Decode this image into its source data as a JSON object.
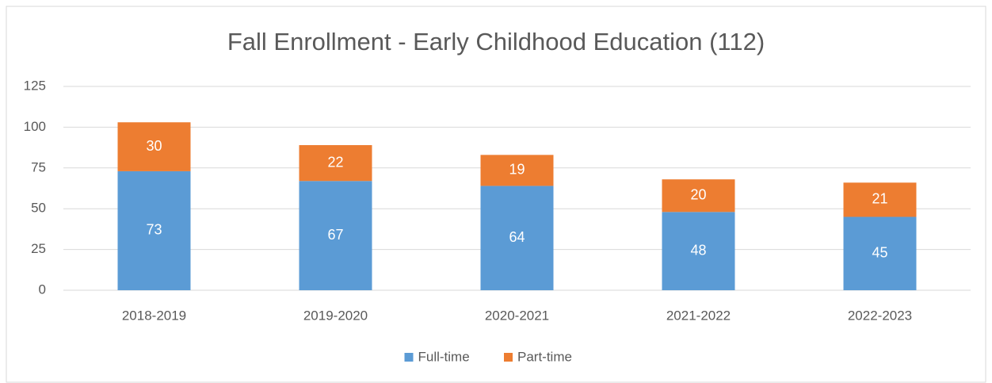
{
  "chart_data": {
    "type": "bar",
    "stacked": true,
    "title": "Fall Enrollment - Early Childhood Education (112)",
    "categories": [
      "2018-2019",
      "2019-2020",
      "2020-2021",
      "2021-2022",
      "2022-2023"
    ],
    "series": [
      {
        "name": "Full-time",
        "color": "#5b9bd5",
        "values": [
          73,
          67,
          64,
          48,
          45
        ]
      },
      {
        "name": "Part-time",
        "color": "#ed7d31",
        "values": [
          30,
          22,
          19,
          20,
          21
        ]
      }
    ],
    "ylim": [
      0,
      125
    ],
    "yticks": [
      0,
      25,
      50,
      75,
      100,
      125
    ],
    "grid": true,
    "legend": "bottom"
  }
}
